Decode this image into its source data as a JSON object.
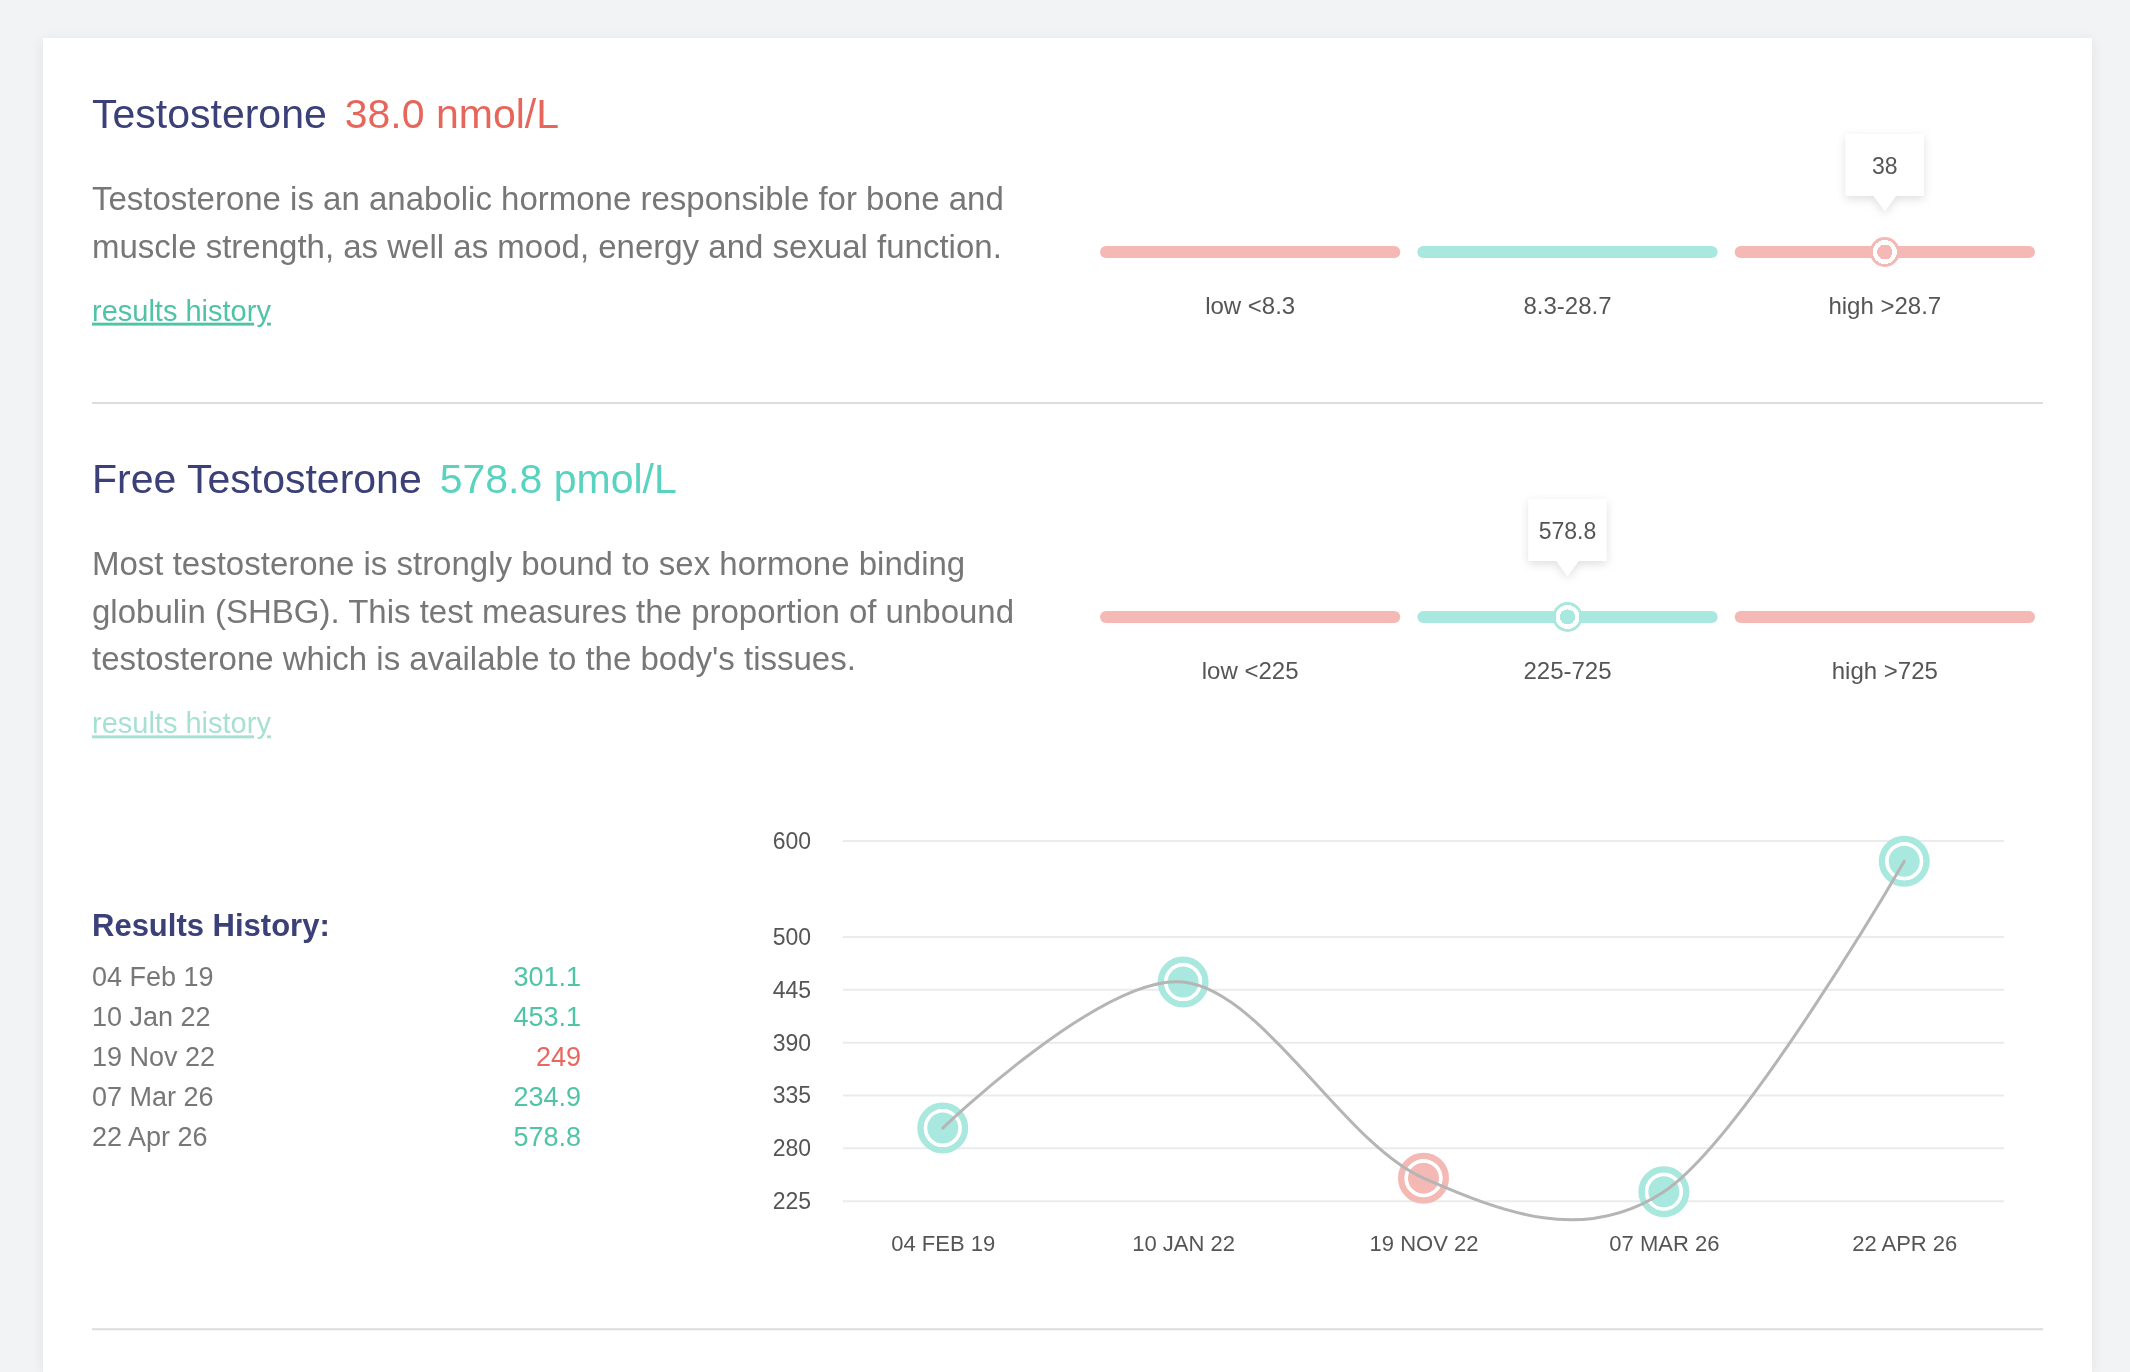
{
  "chart_data": [
    {
      "type": "other",
      "title": "Testosterone",
      "subtitle": "38.0 nmol/L",
      "annotations": [
        "Testosterone is an anabolic hormone responsible for bone and muscle strength, as well as mood, energy and sexual function.",
        "results history"
      ],
      "categories": [
        "low <8.3",
        "8.3-28.7",
        "high >28.7"
      ],
      "colors": [
        "#f4b9b4",
        "#a9e8de",
        "#f4b9b4"
      ],
      "values": [
        null,
        null,
        38
      ],
      "data_labels": true
    },
    {
      "type": "other",
      "title": "Free Testosterone",
      "subtitle": "578.8 pmol/L",
      "annotations": [
        "Most testosterone is strongly bound to sex hormone binding globulin (SHBG). This test measures the proportion of unbound testosterone which is available to the body's tissues.",
        "results history"
      ],
      "categories": [
        "low <225",
        "225-725",
        "high >725"
      ],
      "colors": [
        "#f4b9b4",
        "#a9e8de",
        "#f4b9b4"
      ],
      "values": [
        null,
        578.8,
        null
      ],
      "data_labels": true
    },
    {
      "type": "other",
      "title": "Results History:",
      "categories": [
        "04 Feb 19",
        "10 Jan 22",
        "19 Nov 22",
        "07 Mar 26",
        "22 Apr 26"
      ],
      "values": [
        301.1,
        453.1,
        249,
        234.9,
        578.8
      ],
      "colors": [
        "#4fc4a6",
        "#4fc4a6",
        "#e8675f",
        "#4fc4a6",
        "#4fc4a6"
      ],
      "data_labels": true
    },
    {
      "type": "line",
      "categories": [
        "04 FEB 19",
        "10 JAN 22",
        "19 NOV 22",
        "07 MAR 26",
        "22 APR 26"
      ],
      "series": [
        {
          "color": "#b5b5b5",
          "colors": [
            "#a9e8de",
            "#a9e8de",
            "#f4b9b4",
            "#a9e8de",
            "#a9e8de"
          ],
          "values": [
            301.1,
            453.1,
            249,
            234.9,
            578.8
          ],
          "marker": "circle"
        }
      ],
      "ylim": [
        225,
        600
      ],
      "yticks": [
        225,
        280,
        335,
        390,
        445,
        500,
        600
      ],
      "grid": "y",
      "line_style": "solid"
    }
  ]
}
